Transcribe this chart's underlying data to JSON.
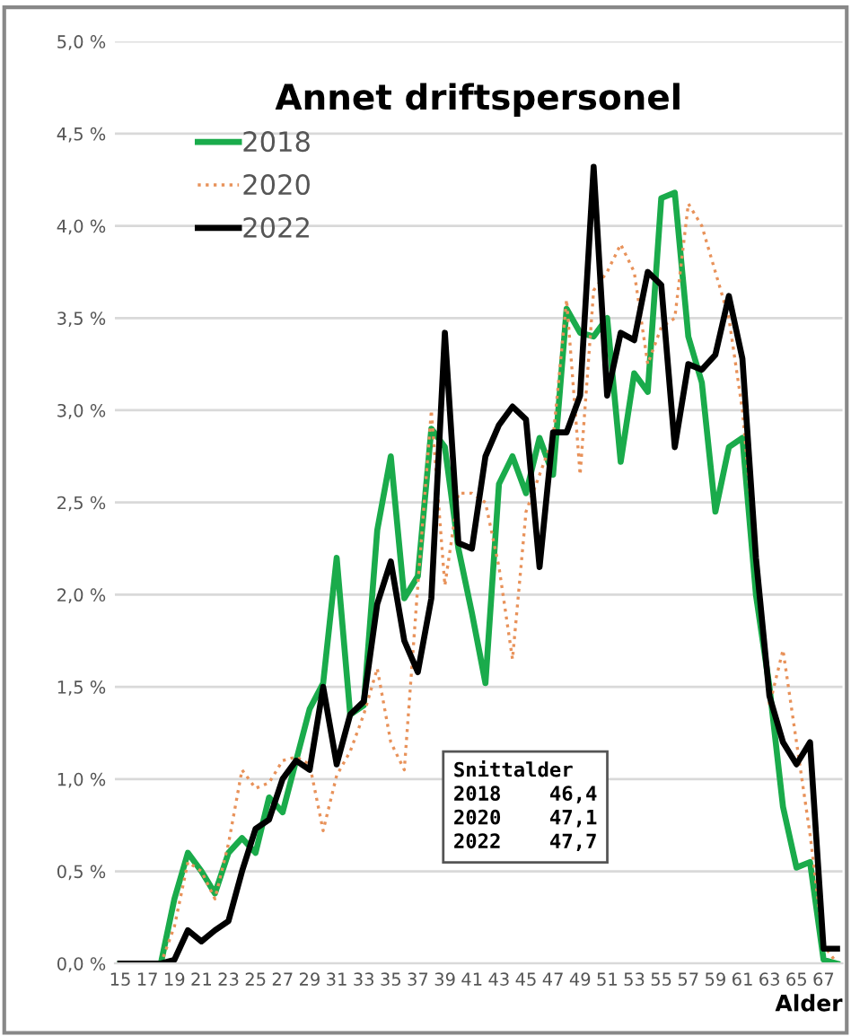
{
  "chart_data": {
    "type": "line",
    "title": "Annet driftspersonel",
    "xlabel": "Alder",
    "categories": [
      "15",
      null,
      "17",
      null,
      "19",
      null,
      "21",
      null,
      "23",
      null,
      "25",
      null,
      "27",
      null,
      "29",
      null,
      "31",
      null,
      "33",
      null,
      "35",
      null,
      "37",
      null,
      "39",
      null,
      "41",
      null,
      "43",
      null,
      "45",
      null,
      "47",
      null,
      "49",
      null,
      "51",
      null,
      "53",
      null,
      "55",
      null,
      "57",
      null,
      "59",
      null,
      "61",
      null,
      "63",
      null,
      "65",
      null,
      "67",
      null
    ],
    "series": [
      {
        "name": "2018",
        "color": "#1aab4b",
        "line_style": "solid",
        "values": [
          0,
          0,
          0,
          0,
          0.35,
          0.6,
          0.5,
          0.38,
          0.6,
          0.68,
          0.6,
          0.9,
          0.82,
          1.1,
          1.38,
          1.52,
          2.2,
          1.35,
          1.4,
          2.35,
          2.75,
          1.98,
          2.1,
          2.9,
          2.8,
          2.25,
          1.9,
          1.52,
          2.6,
          2.75,
          2.55,
          2.85,
          2.65,
          3.55,
          3.42,
          3.4,
          3.5,
          2.72,
          3.2,
          3.1,
          4.15,
          4.18,
          3.4,
          3.15,
          2.45,
          2.8,
          2.85,
          2.0,
          1.5,
          0.85,
          0.52,
          0.55,
          0.02,
          0
        ]
      },
      {
        "name": "2020",
        "color": "#e8925a",
        "line_style": "dotted",
        "values": [
          0,
          0,
          0,
          0,
          0.2,
          0.55,
          0.5,
          0.35,
          0.65,
          1.05,
          0.95,
          0.98,
          1.1,
          1.12,
          1.08,
          0.72,
          1.02,
          1.15,
          1.35,
          1.6,
          1.2,
          1.05,
          2.05,
          3.0,
          2.05,
          2.55,
          2.55,
          2.5,
          2.15,
          1.65,
          2.45,
          2.65,
          2.85,
          3.6,
          2.65,
          3.65,
          3.75,
          3.9,
          3.75,
          3.25,
          3.45,
          3.5,
          4.12,
          4.0,
          3.75,
          3.5,
          3.0,
          2.2,
          1.4,
          1.7,
          1.2,
          0.7,
          0.1,
          0
        ]
      },
      {
        "name": "2022",
        "color": "#000000",
        "line_style": "solid",
        "values": [
          0,
          0,
          0,
          0,
          0.02,
          0.18,
          0.12,
          0.18,
          0.23,
          0.5,
          0.73,
          0.78,
          1.0,
          1.1,
          1.05,
          1.5,
          1.08,
          1.35,
          1.42,
          1.95,
          2.18,
          1.75,
          1.58,
          1.98,
          3.42,
          2.28,
          2.25,
          2.75,
          2.92,
          3.02,
          2.95,
          2.15,
          2.88,
          2.88,
          3.08,
          4.32,
          3.08,
          3.42,
          3.38,
          3.75,
          3.68,
          2.8,
          3.25,
          3.22,
          3.3,
          3.62,
          3.28,
          2.2,
          1.45,
          1.2,
          1.08,
          1.2,
          0.08,
          0.08
        ]
      }
    ],
    "ylim": [
      0,
      5
    ],
    "yticks": [
      {
        "value": 0,
        "label": "0,0 %"
      },
      {
        "value": 0.5,
        "label": "0,5 %"
      },
      {
        "value": 1,
        "label": "1,0 %"
      },
      {
        "value": 1.5,
        "label": "1,5 %"
      },
      {
        "value": 2,
        "label": "2,0 %"
      },
      {
        "value": 2.5,
        "label": "2,5 %"
      },
      {
        "value": 3,
        "label": "3,0 %"
      },
      {
        "value": 3.5,
        "label": "3,5 %"
      },
      {
        "value": 4,
        "label": "4,0 %"
      },
      {
        "value": 4.5,
        "label": "4,5 %"
      },
      {
        "value": 5,
        "label": "5,0 %"
      }
    ],
    "grid": "y",
    "legend": "top left",
    "marker": "none",
    "annotations": [
      "Snittalder\n2018    46,4\n2020    47,1\n2022    47,7"
    ]
  }
}
